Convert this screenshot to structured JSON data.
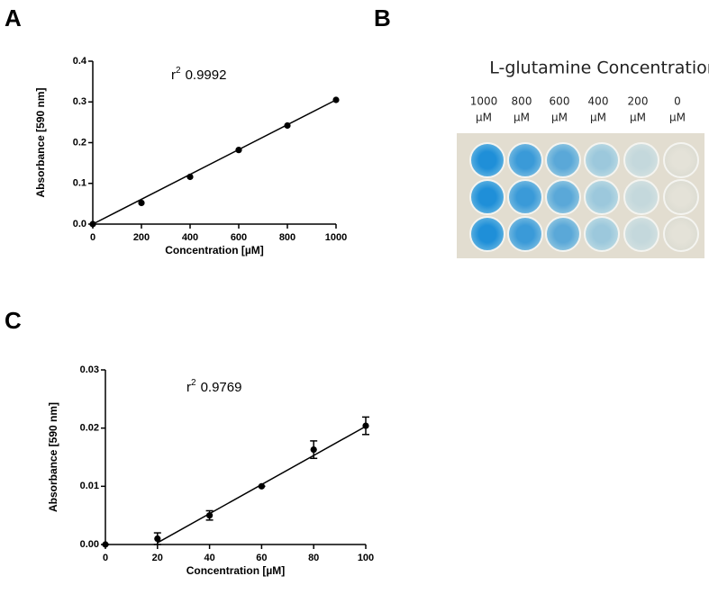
{
  "panel_labels": [
    "A",
    "B",
    "C"
  ],
  "plate": {
    "title": "L-glutamine Concentration",
    "columns": [
      [
        "1000",
        "µM"
      ],
      [
        "800",
        "µM"
      ],
      [
        "600",
        "µM"
      ],
      [
        "400",
        "µM"
      ],
      [
        "200",
        "µM"
      ],
      [
        "0",
        "µM"
      ]
    ]
  },
  "chart_data": [
    {
      "type": "scatter",
      "x": [
        0,
        200,
        400,
        600,
        800,
        1000
      ],
      "y": [
        0,
        0.052,
        0.116,
        0.182,
        0.242,
        0.305
      ],
      "fit": {
        "x": [
          0,
          1000
        ],
        "y": [
          0,
          0.305
        ]
      },
      "xlim": [
        0,
        1000
      ],
      "xticks": [
        0,
        200,
        400,
        600,
        800,
        1000
      ],
      "ylim": [
        0,
        0.4
      ],
      "yticks": [
        {
          "value": 0,
          "label": "0.0"
        },
        0.1,
        0.2,
        0.3,
        0.4
      ],
      "xlabel": "Concentration [µM]",
      "ylabel": "Absorbance [590 nm]",
      "annotation": {
        "base": "r",
        "sup": "2",
        "text": "0.9992"
      },
      "color": "#000000"
    },
    {
      "type": "scatter",
      "x": [
        0,
        20,
        40,
        60,
        80,
        100
      ],
      "y": [
        0,
        0.001,
        0.005,
        0.01,
        0.0163,
        0.0204
      ],
      "errors": [
        0,
        0.001,
        0.0008,
        0,
        0.0015,
        0.0015
      ],
      "fit": {
        "x": [
          20,
          100
        ],
        "y": [
          0.0003,
          0.0203
        ]
      },
      "xlim": [
        0,
        100
      ],
      "xticks": [
        0,
        20,
        40,
        60,
        80,
        100
      ],
      "ylim": [
        0,
        0.03
      ],
      "yticks": [
        {
          "value": 0,
          "label": "0.00"
        },
        0.01,
        0.02,
        0.03
      ],
      "xlabel": "Concentration [µM]",
      "ylabel": "Absorbance [590 nm]",
      "annotation": {
        "base": "r",
        "sup": "2",
        "text": "0.9769"
      },
      "color": "#000000"
    }
  ]
}
